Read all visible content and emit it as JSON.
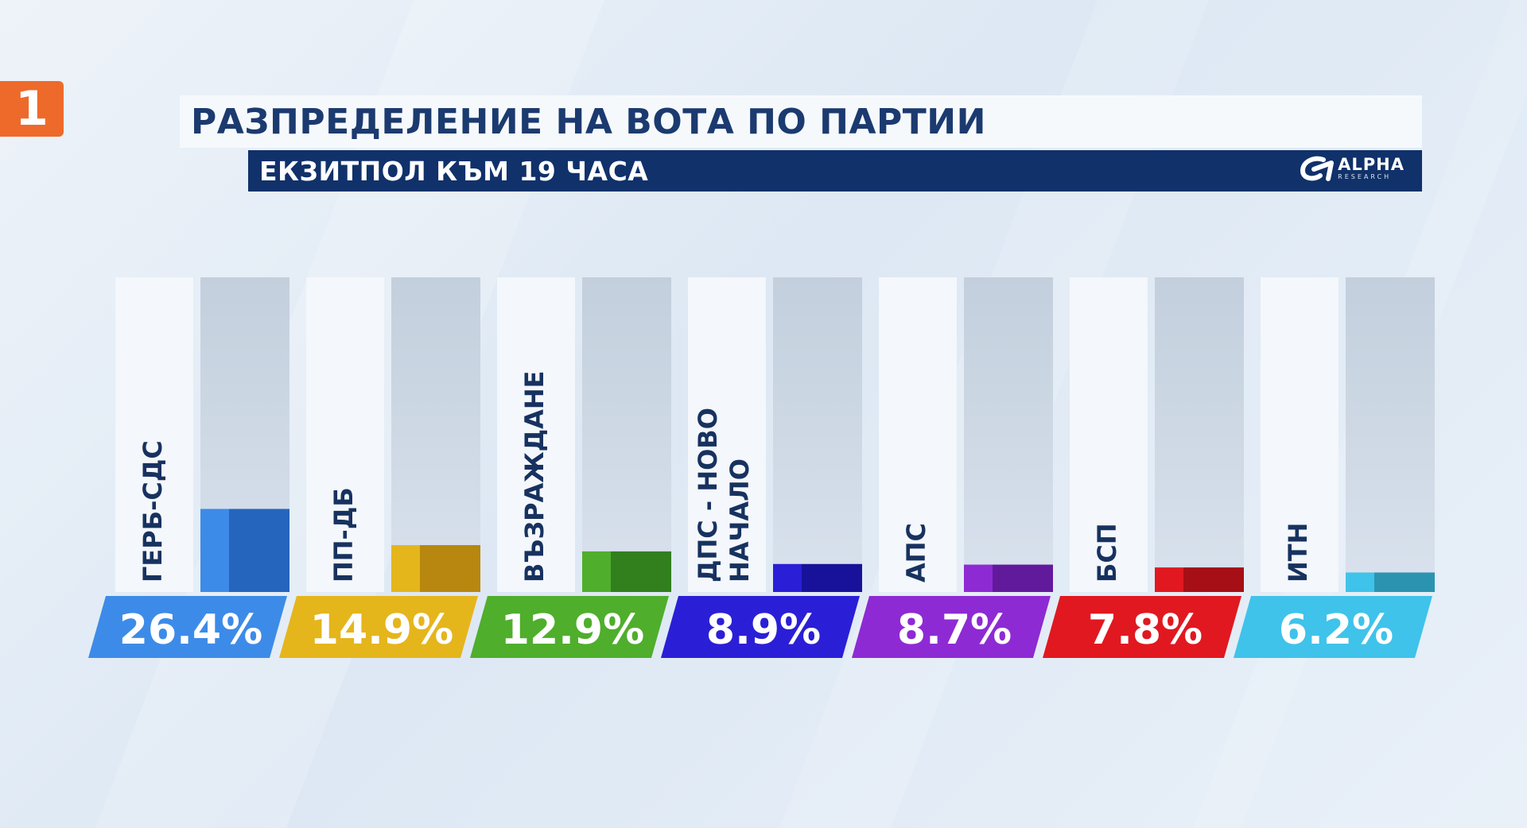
{
  "header": {
    "channel_logo": "1",
    "title": "РАЗПРЕДЕЛЕНИЕ НА ВОТА ПО ПАРТИИ",
    "subtitle": "ЕКЗИТПОЛ КЪМ 19 ЧАСА",
    "brand_name": "ALPHA",
    "brand_sub": "RESEARCH",
    "brand_icon": "alpha-research-logo-icon"
  },
  "colors": {
    "title_text": "#1b3a6f",
    "subtitle_bg": "#10316a",
    "channel_logo_bg": "#ee6a2a"
  },
  "chart_data": {
    "type": "bar",
    "title": "РАЗПРЕДЕЛЕНИЕ НА ВОТА ПО ПАРТИИ",
    "subtitle": "ЕКЗИТПОЛ КЪМ 19 ЧАСА",
    "categories": [
      [
        "ГЕРБ-СДС"
      ],
      [
        "ПП-ДБ"
      ],
      [
        "ВЪЗРАЖДАНЕ"
      ],
      [
        "ДПС - НОВО",
        "НАЧАЛО"
      ],
      [
        "АПС"
      ],
      [
        "БСП"
      ],
      [
        "ИТН"
      ]
    ],
    "values": [
      26.4,
      14.9,
      12.9,
      8.9,
      8.7,
      7.8,
      6.2
    ],
    "value_labels": [
      "26.4%",
      "14.9%",
      "12.9%",
      "8.9%",
      "8.7%",
      "7.8%",
      "6.2%"
    ],
    "colors": [
      "#3d8be8",
      "#e5b51c",
      "#4fae2c",
      "#2a1fd6",
      "#8e2ad4",
      "#e11820",
      "#3fc3ea"
    ],
    "dark_colors": [
      "#2565bd",
      "#b8870f",
      "#327f1d",
      "#18129a",
      "#621a9c",
      "#a50f15",
      "#2b93b0"
    ],
    "ylim": [
      0,
      100
    ],
    "xlabel": "",
    "ylabel": ""
  }
}
